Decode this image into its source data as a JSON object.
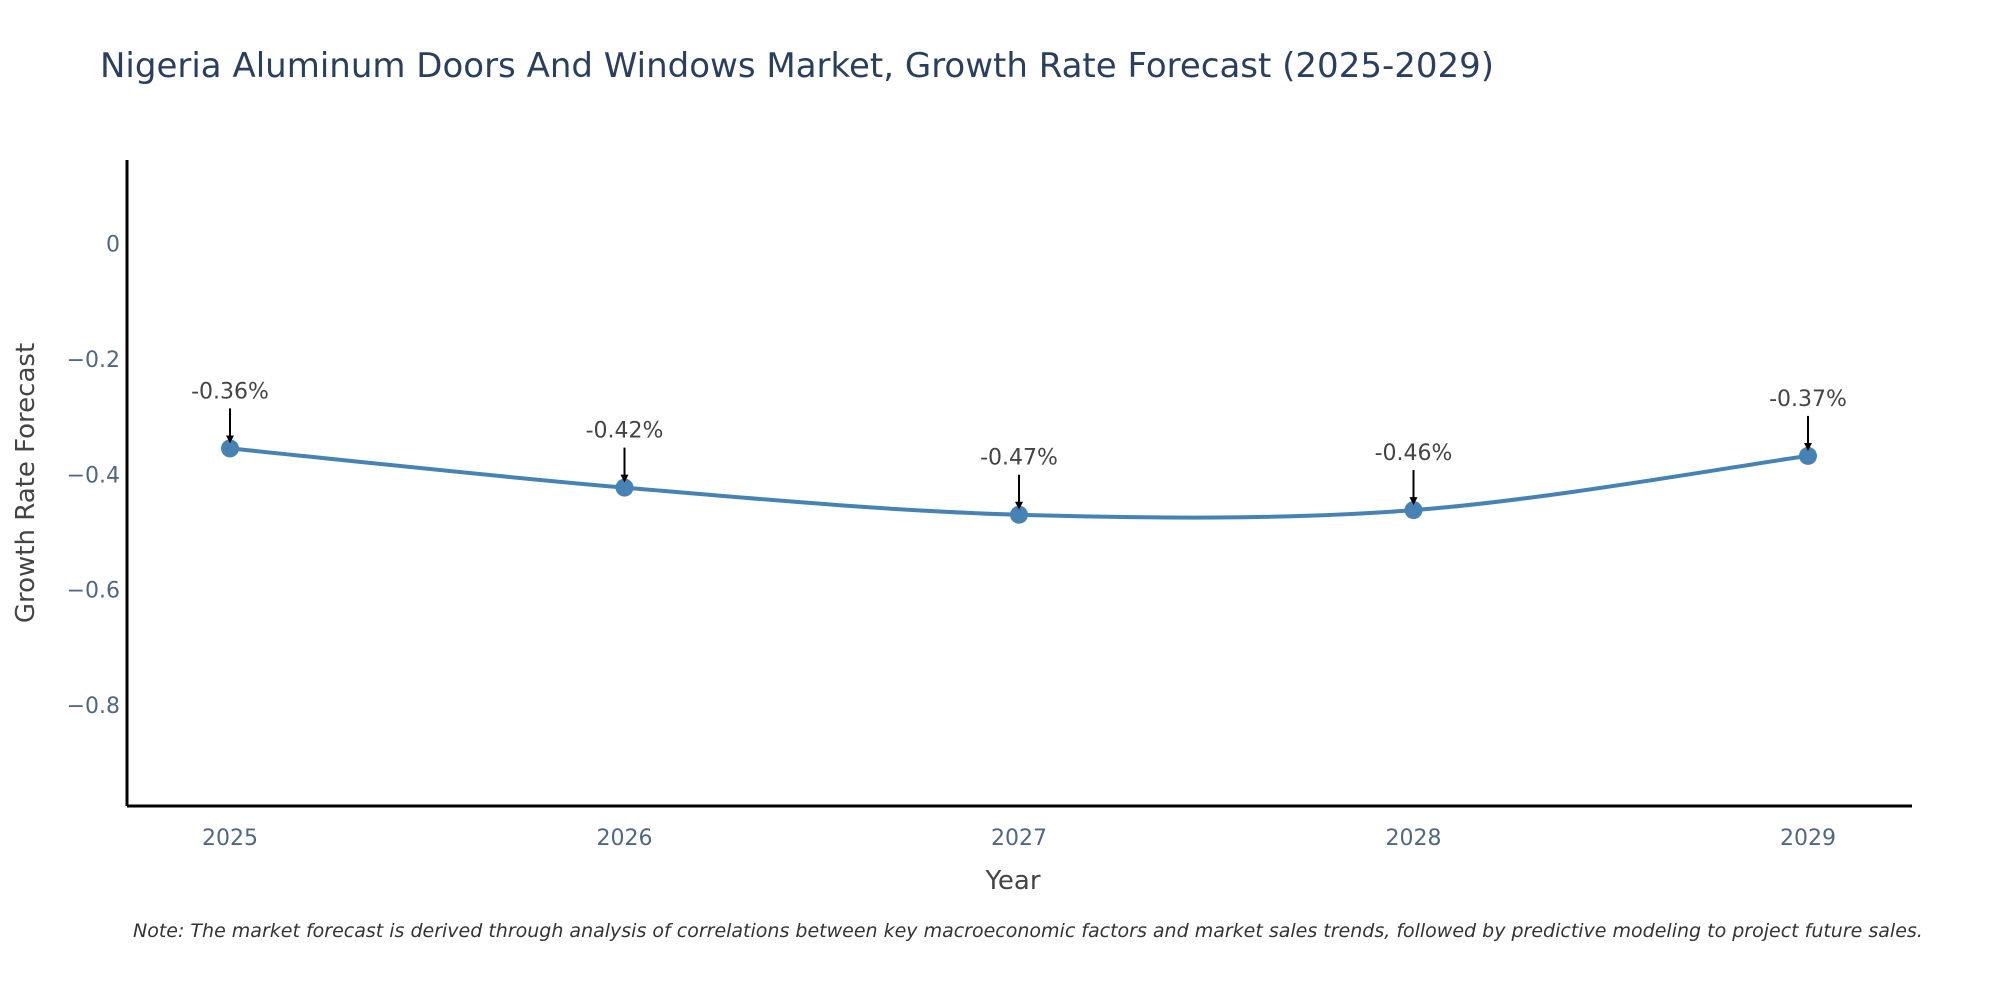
{
  "chart_data": {
    "type": "line",
    "title": "Nigeria Aluminum Doors And Windows Market, Growth Rate Forecast (2025-2029)",
    "xlabel": "Year",
    "ylabel": "Growth Rate Forecast",
    "categories": [
      "2025",
      "2026",
      "2027",
      "2028",
      "2029"
    ],
    "values": [
      -0.355,
      -0.423,
      -0.47,
      -0.462,
      -0.368
    ],
    "data_labels": [
      "-0.36%",
      "-0.42%",
      "-0.47%",
      "-0.46%",
      "-0.37%"
    ],
    "yticks": [
      0,
      -0.2,
      -0.4,
      -0.6,
      -0.8
    ],
    "ytick_labels": [
      "0",
      "−0.2",
      "−0.4",
      "−0.6",
      "−0.8"
    ],
    "ylim": [
      -0.975,
      0.145
    ],
    "grid": false,
    "line_shape": "spline",
    "note": "Note: The market forecast is derived through analysis of correlations between key macroeconomic factors and market sales trends, followed by predictive modeling to project future sales.",
    "colors": {
      "line": "#4682b4",
      "marker": "#4682b4",
      "axis": "#000000",
      "tick_text": "#506784",
      "title": "#2a3f5f",
      "label": "#444444",
      "arrow": "#000000"
    }
  }
}
